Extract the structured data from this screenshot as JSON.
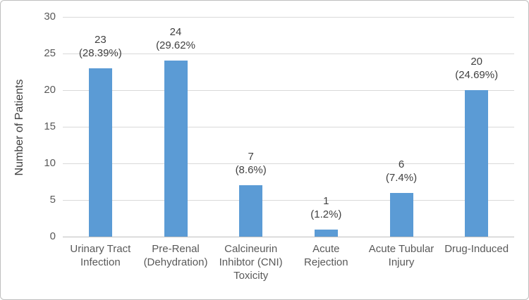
{
  "frame": {
    "background": "#FFFFFF",
    "border_color": "#BFBFBF"
  },
  "chart_data": {
    "type": "bar",
    "title": "",
    "xlabel": "",
    "ylabel": "Number of Patients",
    "ylim": [
      0,
      30
    ],
    "yticks": [
      0,
      5,
      10,
      15,
      20,
      25,
      30
    ],
    "grid": true,
    "legend": false,
    "categories": [
      "Urinary Tract Infection",
      "Pre-Renal (Dehydration)",
      "Calcineurin Inhibtor (CNI) Toxicity",
      "Acute Rejection",
      "Acute Tubular Injury",
      "Drug-Induced"
    ],
    "category_label_lines": [
      [
        "Urinary Tract",
        "Infection"
      ],
      [
        "Pre-Renal",
        "(Dehydration)"
      ],
      [
        "Calcineurin",
        "Inhibtor (CNI)",
        "Toxicity"
      ],
      [
        "Acute",
        "Rejection"
      ],
      [
        "Acute Tubular",
        "Injury"
      ],
      [
        "Drug-Induced"
      ]
    ],
    "values": [
      23,
      24,
      7,
      1,
      6,
      20
    ],
    "percent_labels": [
      "(28.39%)",
      "(29.62%",
      "(8.6%)",
      "(1.2%)",
      "(7.4%)",
      "(24.69%)"
    ],
    "bar_color": "#5B9BD5",
    "gridline_color": "#D9D9D9",
    "axis_line_color": "#BFBFBF",
    "tick_text_color": "#595959",
    "data_label_color": "#404040",
    "axis_title_color": "#404040"
  }
}
